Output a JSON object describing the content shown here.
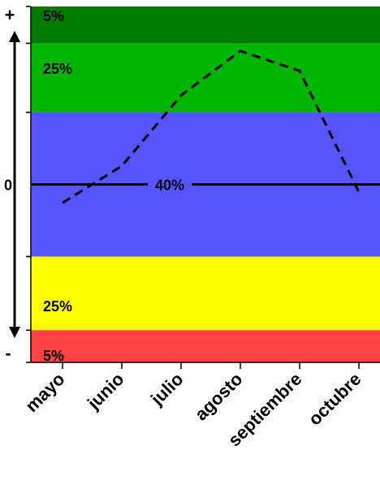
{
  "chart_data": {
    "type": "line",
    "categories": [
      "mayo",
      "junio",
      "julio",
      "agosto",
      "septiembre",
      "octubre"
    ],
    "series": [
      {
        "values": [
          -0.12,
          0.12,
          0.58,
          0.87,
          0.74,
          -0.05
        ],
        "style": "dashed",
        "color": "#000000"
      }
    ],
    "ylim": [
      -1.16,
      1.16
    ],
    "bands": [
      {
        "from": 0.92,
        "to": 1.16,
        "label": "5%",
        "color": "#007a00"
      },
      {
        "from": 0.47,
        "to": 0.92,
        "label": "25%",
        "color": "#00b400"
      },
      {
        "from": -0.47,
        "to": 0.47,
        "label": "40%",
        "color": "#5555ff"
      },
      {
        "from": -0.95,
        "to": -0.47,
        "label": "25%",
        "color": "#ffff00"
      },
      {
        "from": -1.16,
        "to": -0.95,
        "label": "5%",
        "color": "#ff4444"
      }
    ],
    "y_markers": {
      "top": "+",
      "middle": "0",
      "bottom": "-"
    },
    "zero_line": true,
    "legend": "none"
  }
}
